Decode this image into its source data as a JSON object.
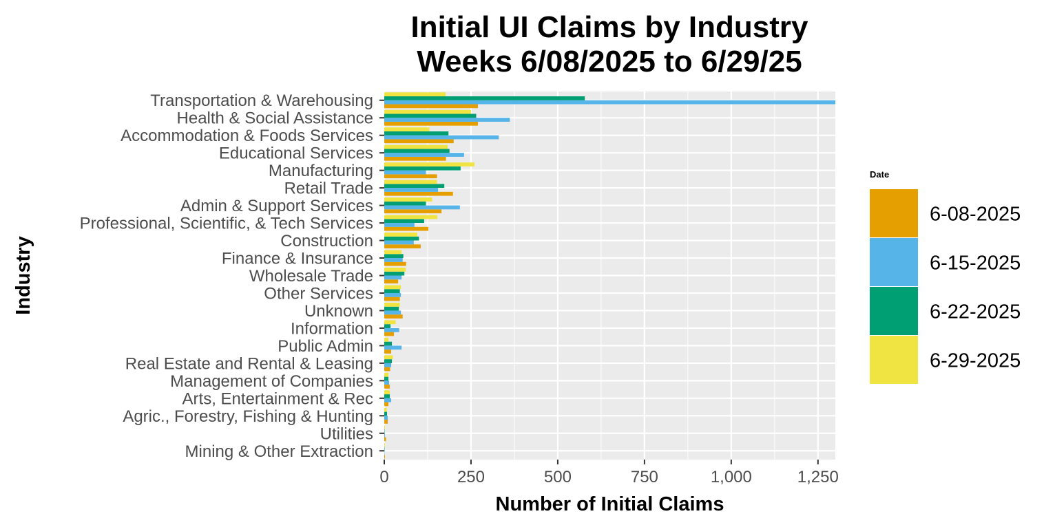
{
  "chart_data": {
    "type": "bar",
    "orientation": "horizontal",
    "title": [
      "Initial UI Claims by Industry",
      "Weeks  6/08/2025 to 6/29/25"
    ],
    "xlabel": "Number of Initial Claims",
    "ylabel": "Industry",
    "xlim": [
      0,
      1300
    ],
    "x_ticks": [
      0,
      250,
      500,
      750,
      1000,
      1250
    ],
    "x_tick_labels": [
      "0",
      "250",
      "500",
      "750",
      "1,000",
      "1,250"
    ],
    "grid": true,
    "legend": {
      "title": "Date",
      "position": "right"
    },
    "categories": [
      "Transportation & Warehousing",
      "Health & Social Assistance",
      "Accommodation & Foods Services",
      "Educational Services",
      "Manufacturing",
      "Retail Trade",
      "Admin & Support Services",
      "Professional, Scientific, & Tech Services",
      "Construction",
      "Finance & Insurance",
      "Wholesale Trade",
      "Other Services",
      "Unknown",
      "Information",
      "Public Admin",
      "Real Estate and Rental & Leasing",
      "Management of Companies",
      "Arts, Entertainment & Rec",
      "Agric., Forestry, Fishing & Hunting",
      "Utilities",
      "Mining & Other Extraction"
    ],
    "series": [
      {
        "name": "6-08-2025",
        "color": "#E69F00",
        "values": [
          270,
          270,
          200,
          178,
          152,
          198,
          165,
          127,
          105,
          63,
          40,
          45,
          53,
          28,
          20,
          17,
          16,
          12,
          10,
          5,
          2
        ]
      },
      {
        "name": "6-15-2025",
        "color": "#56B4E9",
        "values": [
          1300,
          362,
          330,
          230,
          120,
          155,
          218,
          87,
          85,
          53,
          50,
          48,
          48,
          43,
          50,
          20,
          14,
          20,
          10,
          2,
          1
        ]
      },
      {
        "name": "6-22-2025",
        "color": "#009E73",
        "values": [
          578,
          265,
          185,
          188,
          220,
          173,
          120,
          115,
          100,
          55,
          58,
          45,
          42,
          18,
          22,
          22,
          12,
          16,
          8,
          1,
          1
        ]
      },
      {
        "name": "6-29-2025",
        "color": "#F0E442",
        "values": [
          177,
          250,
          130,
          183,
          260,
          152,
          138,
          153,
          95,
          50,
          62,
          48,
          45,
          33,
          12,
          25,
          12,
          16,
          7,
          2,
          2
        ]
      }
    ]
  }
}
